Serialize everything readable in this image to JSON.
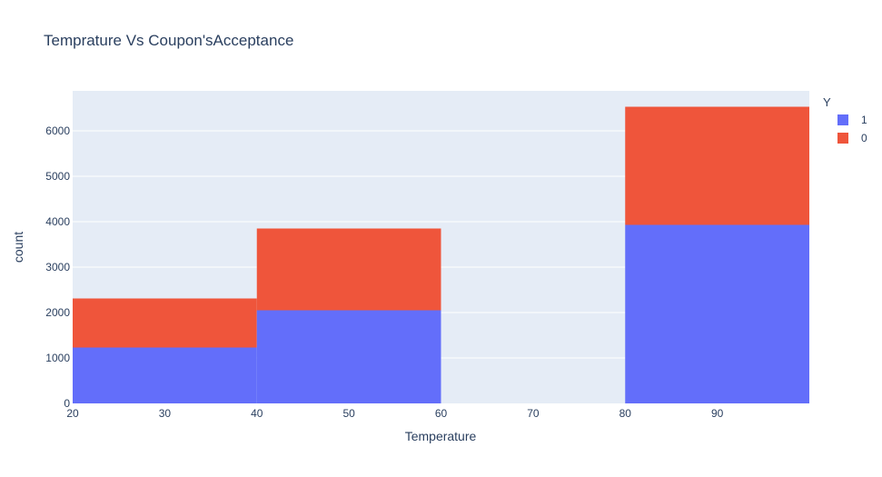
{
  "chart_data": {
    "type": "bar",
    "title": "Temprature Vs Coupon'sAcceptance",
    "xlabel": "Temperature",
    "ylabel": "count",
    "barmode": "stack",
    "bins": [
      {
        "x0": 20,
        "x1": 40
      },
      {
        "x0": 40,
        "x1": 60
      },
      {
        "x0": 60,
        "x1": 80
      },
      {
        "x0": 80,
        "x1": 100
      }
    ],
    "series": [
      {
        "name": "1",
        "color": "#636efa",
        "values": [
          1230,
          2050,
          0,
          3930
        ]
      },
      {
        "name": "0",
        "color": "#ef553b",
        "values": [
          1080,
          1800,
          0,
          2600
        ]
      }
    ],
    "xlim": [
      20,
      100
    ],
    "ylim": [
      0,
      6880
    ],
    "x_ticks": [
      20,
      30,
      40,
      50,
      60,
      70,
      80,
      90
    ],
    "y_ticks": [
      0,
      1000,
      2000,
      3000,
      4000,
      5000,
      6000
    ],
    "legend": {
      "title": "Y",
      "position": "top-right"
    },
    "grid": true,
    "colors": {
      "plot_background": "#e5ecf6",
      "grid": "#ffffff",
      "text": "#2a3f5f"
    }
  }
}
